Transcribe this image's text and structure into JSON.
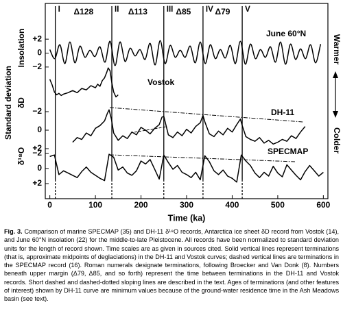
{
  "chart_data": {
    "type": "line",
    "xlabel": "Time (ka)",
    "ylabel": "Standard deviation",
    "xlim": [
      -10,
      610
    ],
    "xticks": [
      0,
      100,
      200,
      300,
      400,
      500,
      600
    ],
    "right_labels": [
      "Warmer",
      "Colder"
    ],
    "axis_labels": [
      "Insolation",
      "δD",
      "δ¹⁸O"
    ],
    "terminations": [
      {
        "label": "I",
        "x": 12
      },
      {
        "label": "II",
        "x": 136
      },
      {
        "label": "III",
        "x": 250
      },
      {
        "label": "IV",
        "x": 336
      },
      {
        "label": "V",
        "x": 422
      }
    ],
    "intervals": [
      "Δ128",
      "Δ113",
      "Δ85",
      "Δ79"
    ],
    "panels": [
      {
        "ylim": [
          -3,
          3
        ],
        "yticks": [
          {
            "value": 2,
            "label": "+2"
          },
          0,
          {
            "value": -2,
            "label": "−2"
          }
        ],
        "series": [
          {
            "name": "June 60°N",
            "color": "#000000",
            "smooth": true,
            "x": [
              0,
              11,
              22,
              33,
              44,
              55,
              66,
              77,
              88,
              99,
              110,
              121,
              132,
              143,
              154,
              165,
              176,
              187,
              198,
              209,
              220,
              231,
              242,
              253,
              264,
              275,
              286,
              297,
              308,
              319,
              330,
              341,
              352,
              363,
              374,
              385,
              396,
              407,
              418,
              429,
              440,
              451,
              462,
              473,
              484,
              495,
              506,
              517,
              528,
              539,
              550,
              561,
              572,
              583,
              594
            ],
            "values": [
              0.5,
              -0.8,
              1.2,
              -1.5,
              1.6,
              -1.4,
              1.0,
              -0.6,
              0.4,
              -0.5,
              0.9,
              -1.3,
              1.7,
              -1.8,
              1.6,
              -1.2,
              0.7,
              -0.4,
              0.5,
              -0.9,
              1.4,
              -1.7,
              1.8,
              -1.5,
              1.1,
              -0.6,
              0.4,
              -0.6,
              1.0,
              -1.4,
              1.6,
              -1.5,
              1.2,
              -0.8,
              0.5,
              -0.7,
              1.1,
              -1.5,
              1.7,
              -1.6,
              1.3,
              -0.8,
              0.5,
              -0.6,
              0.9,
              -1.3,
              1.6,
              -1.6,
              1.3,
              -0.9,
              0.6,
              -0.8,
              1.2,
              -1.4,
              1.3
            ]
          }
        ]
      },
      {
        "ylim": [
          -3,
          3
        ],
        "yticks": [],
        "series": [
          {
            "name": "Vostok",
            "color": "#000000",
            "x": [
              0,
              5,
              10,
              15,
              20,
              25,
              30,
              40,
              50,
              60,
              70,
              80,
              90,
              100,
              105,
              110,
              115,
              120,
              125,
              128,
              132,
              136,
              140,
              145,
              150
            ],
            "values": [
              1.0,
              0.2,
              -0.8,
              -1.2,
              -1.0,
              -1.3,
              -1.1,
              -0.9,
              -0.6,
              -0.9,
              -0.3,
              -0.5,
              0.1,
              -0.2,
              0.3,
              0.0,
              0.8,
              1.2,
              2.0,
              2.6,
              2.2,
              0.5,
              -0.8,
              -1.5,
              -1.2
            ]
          }
        ]
      },
      {
        "ylim": [
          3,
          -3
        ],
        "yticks": [
          {
            "value": -2,
            "label": "−2"
          },
          0,
          {
            "value": 2,
            "label": "+2"
          }
        ],
        "series": [
          {
            "name": "DH-11",
            "color": "#000000",
            "x": [
              50,
              60,
              70,
              80,
              90,
              100,
              110,
              120,
              126,
              130,
              135,
              140,
              150,
              160,
              170,
              180,
              190,
              200,
              210,
              220,
              230,
              240,
              246,
              250,
              260,
              270,
              280,
              290,
              300,
              310,
              320,
              330,
              336,
              340,
              350,
              360,
              370,
              380,
              390,
              400,
              410,
              418,
              422,
              430,
              440,
              450,
              460,
              470,
              480,
              490,
              500,
              510,
              520,
              530,
              540,
              550,
              560
            ],
            "values": [
              1.3,
              0.8,
              1.0,
              0.3,
              0.6,
              -0.2,
              -0.5,
              -1.0,
              -1.8,
              -2.2,
              -1.2,
              0.3,
              1.1,
              0.6,
              0.9,
              0.2,
              0.5,
              -0.3,
              0.0,
              0.4,
              -0.2,
              -0.6,
              -1.4,
              -1.5,
              0.5,
              0.8,
              0.2,
              0.6,
              -0.1,
              0.3,
              -0.4,
              -0.8,
              -1.6,
              -0.9,
              0.4,
              0.7,
              0.1,
              0.5,
              -0.2,
              0.2,
              -0.6,
              -1.2,
              -0.5,
              0.7,
              1.0,
              1.2,
              0.8,
              1.4,
              1.1,
              1.5,
              1.3,
              1.0,
              1.2,
              0.6,
              0.9,
              0.2,
              -0.4
            ]
          }
        ]
      },
      {
        "ylim": [
          3,
          -3
        ],
        "yticks": [
          {
            "value": -2,
            "label": "−2"
          },
          0,
          {
            "value": 2,
            "label": "+2"
          }
        ],
        "series": [
          {
            "name": "SPECMAP",
            "color": "#000000",
            "x": [
              0,
              10,
              20,
              30,
              40,
              50,
              60,
              70,
              80,
              90,
              100,
              110,
              120,
              130,
              140,
              150,
              160,
              170,
              180,
              190,
              200,
              210,
              220,
              230,
              240,
              250,
              260,
              270,
              280,
              290,
              300,
              310,
              320,
              330,
              340,
              350,
              360,
              370,
              380,
              390,
              400,
              410,
              420,
              430,
              440,
              450,
              460,
              470,
              480,
              490,
              500,
              510,
              520,
              530,
              540,
              550,
              560,
              570,
              580,
              590,
              600
            ],
            "values": [
              -1.6,
              -1.8,
              0.8,
              0.3,
              0.6,
              0.9,
              1.2,
              0.4,
              -0.2,
              0.5,
              0.9,
              1.3,
              1.6,
              -1.9,
              -1.5,
              0.2,
              -0.2,
              0.6,
              0.9,
              0.3,
              -1.0,
              -0.6,
              -1.2,
              0.1,
              1.4,
              -1.8,
              -0.8,
              0.1,
              -0.4,
              0.5,
              0.8,
              1.2,
              0.5,
              1.5,
              -1.7,
              -0.9,
              0.3,
              0.8,
              0.2,
              1.0,
              1.3,
              1.8,
              -1.8,
              -1.0,
              -0.4,
              0.6,
              1.2,
              0.5,
              1.0,
              -0.3,
              0.6,
              1.1,
              -0.5,
              0.2,
              0.9,
              1.5,
              0.4,
              -0.4,
              0.3,
              1.0,
              0.5
            ]
          }
        ]
      }
    ]
  },
  "caption": {
    "label": "Fig. 3.",
    "text": "Comparison of marine SPECMAP (35) and DH-11 δ¹⁸O records, Antarctica ice sheet δD record from Vostok (14), and June 60°N insolation (22) for the middle-to-late Pleistocene. All records have been normalized to standard deviation units for the length of record shown. Time scales are as given in sources cited. Solid vertical lines represent terminations (that is, approximate midpoints of deglaciations) in the DH-11 and Vostok curves; dashed vertical lines are terminations in the SPECMAP record (16). Roman numerals designate terminations, following Broecker and Van Donk (8). Numbers beneath upper margin (Δ79, Δ85, and so forth) represent the time between terminations in the DH-11 and Vostok records. Short dashed and dashed-dotted sloping lines are described in the text. Ages of terminations (and other features of interest) shown by DH-11 curve are minimum values because of the ground-water residence time in the Ash Meadows basin (see text)."
  }
}
